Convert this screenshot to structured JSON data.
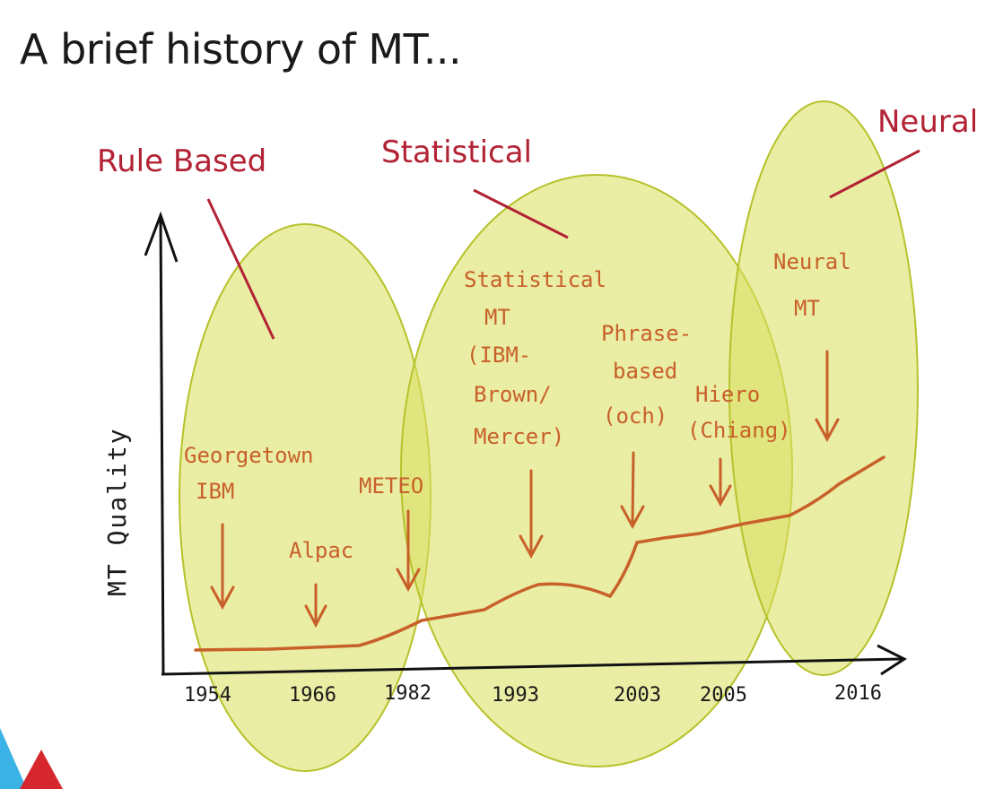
{
  "title": "A brief history of MT...",
  "eras": {
    "rule_based": "Rule Based",
    "statistical": "Statistical",
    "neural": "Neural"
  },
  "axes": {
    "y_label": "MT Quality"
  },
  "years": [
    "1954",
    "1966",
    "1982",
    "1993",
    "2003",
    "2005",
    "2016"
  ],
  "annotations": {
    "georgetown": [
      "Georgetown",
      "IBM"
    ],
    "alpac": [
      "Alpac"
    ],
    "meteo": [
      "METEO"
    ],
    "statistical_mt": [
      "Statistical",
      "MT",
      "(IBM-",
      "Brown/",
      "Mercer)"
    ],
    "phrase_based": [
      "Phrase-",
      "based",
      "(och)"
    ],
    "hiero": [
      "Hiero",
      "(Chiang)"
    ],
    "neural_mt": [
      "Neural",
      "MT"
    ]
  },
  "colors": {
    "era_label": "#b22234",
    "handwriting": "#c8602a",
    "ellipse_fill": "#dbe063",
    "ellipse_stroke": "#b6c22a",
    "axis": "#111111",
    "logo_red": "#d6262e",
    "logo_blue": "#3bb3e6"
  }
}
